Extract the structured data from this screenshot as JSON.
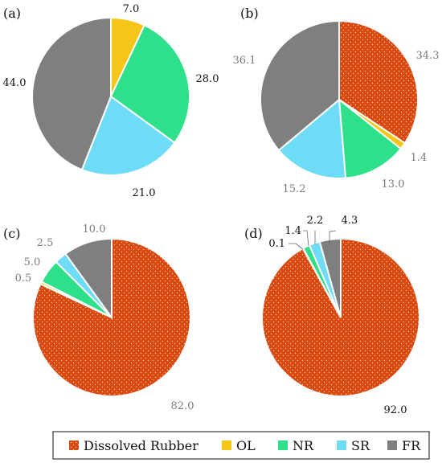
{
  "chart_data": [
    {
      "type": "pie",
      "panel": "(a)",
      "slices": [
        {
          "category": "Dissolved Rubber",
          "value": 0
        },
        {
          "category": "OL",
          "value": 7.0,
          "label": "7.0"
        },
        {
          "category": "NR",
          "value": 28.0,
          "label": "28.0"
        },
        {
          "category": "SR",
          "value": 21.0,
          "label": "21.0"
        },
        {
          "category": "FR",
          "value": 44.0,
          "label": "44.0"
        }
      ]
    },
    {
      "type": "pie",
      "panel": "(b)",
      "slices": [
        {
          "category": "Dissolved Rubber",
          "value": 34.3,
          "label": "34.3"
        },
        {
          "category": "OL",
          "value": 1.4,
          "label": "1.4"
        },
        {
          "category": "NR",
          "value": 13.0,
          "label": "13.0"
        },
        {
          "category": "SR",
          "value": 15.2,
          "label": "15.2"
        },
        {
          "category": "FR",
          "value": 36.1,
          "label": "36.1"
        }
      ]
    },
    {
      "type": "pie",
      "panel": "(c)",
      "slices": [
        {
          "category": "Dissolved Rubber",
          "value": 82.0,
          "label": "82.0"
        },
        {
          "category": "OL",
          "value": 0.5,
          "label": "0.5"
        },
        {
          "category": "NR",
          "value": 5.0,
          "label": "5.0"
        },
        {
          "category": "SR",
          "value": 2.5,
          "label": "2.5"
        },
        {
          "category": "FR",
          "value": 10.0,
          "label": "10.0"
        }
      ]
    },
    {
      "type": "pie",
      "panel": "(d)",
      "slices": [
        {
          "category": "Dissolved Rubber",
          "value": 92.0,
          "label": "92.0"
        },
        {
          "category": "OL",
          "value": 0.1,
          "label": "0.1"
        },
        {
          "category": "NR",
          "value": 1.4,
          "label": "1.4"
        },
        {
          "category": "SR",
          "value": 2.2,
          "label": "2.2"
        },
        {
          "category": "FR",
          "value": 4.3,
          "label": "4.3"
        }
      ]
    }
  ],
  "legend": [
    {
      "name": "Dissolved Rubber",
      "color": "#d9480f"
    },
    {
      "name": "OL",
      "color": "#f5c518"
    },
    {
      "name": "NR",
      "color": "#2ee08a"
    },
    {
      "name": "SR",
      "color": "#6fdcf7"
    },
    {
      "name": "FR",
      "color": "#7f7f7f"
    }
  ],
  "colors": {
    "Dissolved Rubber": "#d9480f",
    "OL": "#f5c518",
    "NR": "#2ee08a",
    "SR": "#6fdcf7",
    "FR": "#7f7f7f"
  },
  "legend_position": "bottom"
}
